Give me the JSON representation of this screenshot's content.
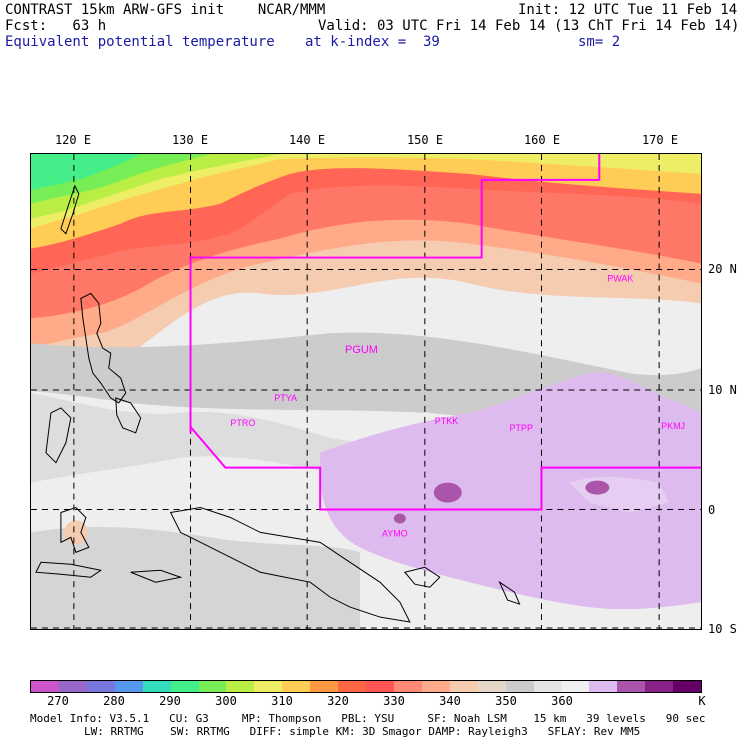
{
  "header": {
    "title": "CONTRAST 15km ARW-GFS init    NCAR/MMM",
    "init": "Init: 12 UTC Tue 11 Feb 14",
    "fcst": "Fcst:   63 h",
    "valid": "Valid: 03 UTC Fri 14 Feb 14 (13 ChT Fri 14 Feb 14)",
    "field": "Equivalent potential temperature",
    "level": "at k-index =  39",
    "smooth": "sm= 2"
  },
  "map": {
    "lon_labels": [
      "120 E",
      "130 E",
      "140 E",
      "150 E",
      "160 E",
      "170 E"
    ],
    "lat_labels": [
      "20 N",
      "10 N",
      "0",
      "10 S"
    ],
    "stations": [
      "PWAK",
      "PGUM",
      "PTYA",
      "PTRO",
      "PTKK",
      "PTPP",
      "PKMJ",
      "AYMO"
    ]
  },
  "colorbar": {
    "colors": [
      "#cc55cc",
      "#9966cc",
      "#7777dd",
      "#5599ee",
      "#33ddbb",
      "#44ee88",
      "#77ee55",
      "#bbee44",
      "#eeee66",
      "#ffcc55",
      "#ff9944",
      "#ff6644",
      "#ff5555",
      "#ff8877",
      "#ffaa88",
      "#f5ccb0",
      "#e6d8c8",
      "#cccccc",
      "#e5e5e5",
      "#f0f0f0",
      "#ddbbee",
      "#aa55aa",
      "#882288",
      "#660066"
    ],
    "tick_labels": [
      "270",
      "280",
      "290",
      "300",
      "310",
      "320",
      "330",
      "340",
      "350",
      "360",
      "K"
    ]
  },
  "footer": {
    "line1": "Model Info: V3.5.1   CU: G3     MP: Thompson   PBL: YSU     SF: Noah LSM    15 km   39 levels   90 sec",
    "line2": "LW: RRTMG    SW: RRTMG   DIFF: simple KM: 3D Smagor DAMP: Rayleigh3   SFLAY: Rev MM5"
  }
}
